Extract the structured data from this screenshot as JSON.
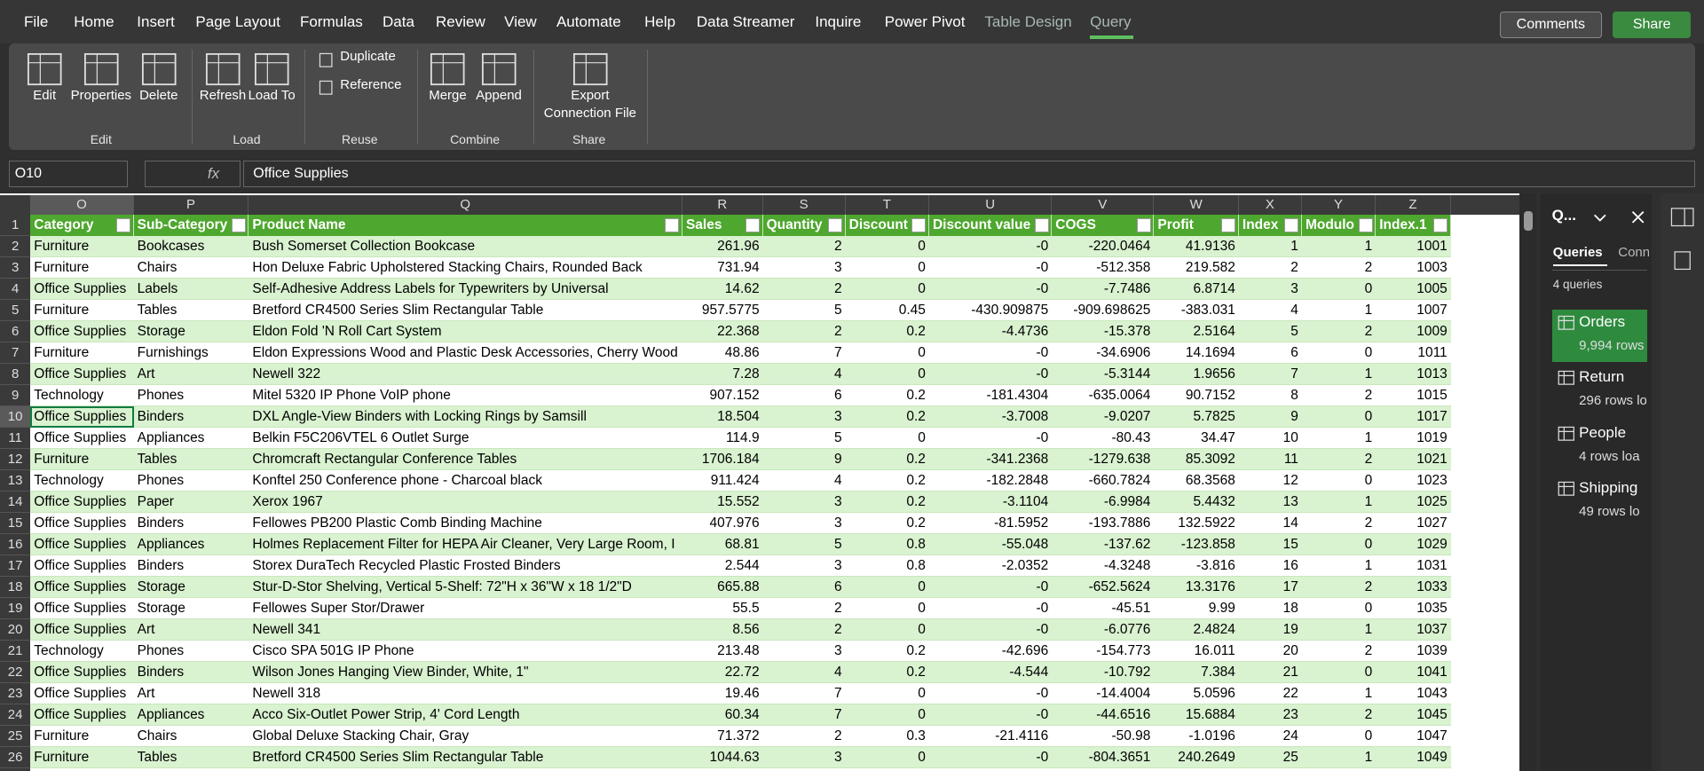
{
  "menu": {
    "tabs": [
      "File",
      "Home",
      "Insert",
      "Page Layout",
      "Formulas",
      "Data",
      "Review",
      "View",
      "Automate",
      "Help",
      "Data Streamer",
      "Inquire",
      "Power Pivot",
      "Table Design",
      "Query"
    ],
    "comments": "Comments",
    "share": "Share"
  },
  "ribbon": {
    "groups": [
      {
        "label": "Edit",
        "buttons": [
          "Edit",
          "Properties",
          "Delete"
        ]
      },
      {
        "label": "Load",
        "buttons": [
          "Refresh",
          "Load To"
        ]
      },
      {
        "label": "Reuse",
        "buttons": [
          "Duplicate",
          "Reference"
        ]
      },
      {
        "label": "Combine",
        "buttons": [
          "Merge",
          "Append"
        ]
      },
      {
        "label": "Share",
        "buttons": [
          "Export Connection File"
        ]
      }
    ]
  },
  "formula_bar": {
    "name_box": "O10",
    "fx": "fx",
    "content": "Office Supplies"
  },
  "sheet": {
    "columns": [
      "O",
      "P",
      "Q",
      "R",
      "S",
      "T",
      "U",
      "V",
      "W",
      "X",
      "Y",
      "Z"
    ],
    "row_numbers": [
      1,
      2,
      3,
      4,
      5,
      6,
      7,
      8,
      9,
      10,
      11,
      12,
      13,
      14,
      15,
      16,
      17,
      18,
      19,
      20,
      21,
      22,
      23,
      24,
      25,
      26
    ],
    "header": [
      "Category",
      "Sub-Category",
      "Product Name",
      "Sales",
      "Quantity",
      "Discount",
      "Discount value",
      "COGS",
      "Profit",
      "Index",
      "Modulo",
      "Index.1"
    ],
    "rows": [
      [
        "Furniture",
        "Bookcases",
        "Bush Somerset Collection Bookcase",
        "261.96",
        "2",
        "0",
        "-0",
        "-220.0464",
        "41.9136",
        "1",
        "1",
        "1001"
      ],
      [
        "Furniture",
        "Chairs",
        "Hon Deluxe Fabric Upholstered Stacking Chairs, Rounded Back",
        "731.94",
        "3",
        "0",
        "-0",
        "-512.358",
        "219.582",
        "2",
        "2",
        "1003"
      ],
      [
        "Office Supplies",
        "Labels",
        "Self-Adhesive Address Labels for Typewriters by Universal",
        "14.62",
        "2",
        "0",
        "-0",
        "-7.7486",
        "6.8714",
        "3",
        "0",
        "1005"
      ],
      [
        "Furniture",
        "Tables",
        "Bretford CR4500 Series Slim Rectangular Table",
        "957.5775",
        "5",
        "0.45",
        "-430.909875",
        "-909.698625",
        "-383.031",
        "4",
        "1",
        "1007"
      ],
      [
        "Office Supplies",
        "Storage",
        "Eldon Fold 'N Roll Cart System",
        "22.368",
        "2",
        "0.2",
        "-4.4736",
        "-15.378",
        "2.5164",
        "5",
        "2",
        "1009"
      ],
      [
        "Furniture",
        "Furnishings",
        "Eldon Expressions Wood and Plastic Desk Accessories, Cherry Wood",
        "48.86",
        "7",
        "0",
        "-0",
        "-34.6906",
        "14.1694",
        "6",
        "0",
        "1011"
      ],
      [
        "Office Supplies",
        "Art",
        "Newell 322",
        "7.28",
        "4",
        "0",
        "-0",
        "-5.3144",
        "1.9656",
        "7",
        "1",
        "1013"
      ],
      [
        "Technology",
        "Phones",
        "Mitel 5320 IP Phone VoIP phone",
        "907.152",
        "6",
        "0.2",
        "-181.4304",
        "-635.0064",
        "90.7152",
        "8",
        "2",
        "1015"
      ],
      [
        "Office Supplies",
        "Binders",
        "DXL Angle-View Binders with Locking Rings by Samsill",
        "18.504",
        "3",
        "0.2",
        "-3.7008",
        "-9.0207",
        "5.7825",
        "9",
        "0",
        "1017"
      ],
      [
        "Office Supplies",
        "Appliances",
        "Belkin F5C206VTEL 6 Outlet Surge",
        "114.9",
        "5",
        "0",
        "-0",
        "-80.43",
        "34.47",
        "10",
        "1",
        "1019"
      ],
      [
        "Furniture",
        "Tables",
        "Chromcraft Rectangular Conference Tables",
        "1706.184",
        "9",
        "0.2",
        "-341.2368",
        "-1279.638",
        "85.3092",
        "11",
        "2",
        "1021"
      ],
      [
        "Technology",
        "Phones",
        "Konftel 250 Conference phone - Charcoal black",
        "911.424",
        "4",
        "0.2",
        "-182.2848",
        "-660.7824",
        "68.3568",
        "12",
        "0",
        "1023"
      ],
      [
        "Office Supplies",
        "Paper",
        "Xerox 1967",
        "15.552",
        "3",
        "0.2",
        "-3.1104",
        "-6.9984",
        "5.4432",
        "13",
        "1",
        "1025"
      ],
      [
        "Office Supplies",
        "Binders",
        "Fellowes PB200 Plastic Comb Binding Machine",
        "407.976",
        "3",
        "0.2",
        "-81.5952",
        "-193.7886",
        "132.5922",
        "14",
        "2",
        "1027"
      ],
      [
        "Office Supplies",
        "Appliances",
        "Holmes Replacement Filter for HEPA Air Cleaner, Very Large Room, I",
        "68.81",
        "5",
        "0.8",
        "-55.048",
        "-137.62",
        "-123.858",
        "15",
        "0",
        "1029"
      ],
      [
        "Office Supplies",
        "Binders",
        "Storex DuraTech Recycled Plastic Frosted Binders",
        "2.544",
        "3",
        "0.8",
        "-2.0352",
        "-4.3248",
        "-3.816",
        "16",
        "1",
        "1031"
      ],
      [
        "Office Supplies",
        "Storage",
        "Stur-D-Stor Shelving, Vertical 5-Shelf: 72\"H x 36\"W x 18 1/2\"D",
        "665.88",
        "6",
        "0",
        "-0",
        "-652.5624",
        "13.3176",
        "17",
        "2",
        "1033"
      ],
      [
        "Office Supplies",
        "Storage",
        "Fellowes Super Stor/Drawer",
        "55.5",
        "2",
        "0",
        "-0",
        "-45.51",
        "9.99",
        "18",
        "0",
        "1035"
      ],
      [
        "Office Supplies",
        "Art",
        "Newell 341",
        "8.56",
        "2",
        "0",
        "-0",
        "-6.0776",
        "2.4824",
        "19",
        "1",
        "1037"
      ],
      [
        "Technology",
        "Phones",
        "Cisco SPA 501G IP Phone",
        "213.48",
        "3",
        "0.2",
        "-42.696",
        "-154.773",
        "16.011",
        "20",
        "2",
        "1039"
      ],
      [
        "Office Supplies",
        "Binders",
        "Wilson Jones Hanging View Binder, White, 1\"",
        "22.72",
        "4",
        "0.2",
        "-4.544",
        "-10.792",
        "7.384",
        "21",
        "0",
        "1041"
      ],
      [
        "Office Supplies",
        "Art",
        "Newell 318",
        "19.46",
        "7",
        "0",
        "-0",
        "-14.4004",
        "5.0596",
        "22",
        "1",
        "1043"
      ],
      [
        "Office Supplies",
        "Appliances",
        "Acco Six-Outlet Power Strip, 4' Cord Length",
        "60.34",
        "7",
        "0",
        "-0",
        "-44.6516",
        "15.6884",
        "23",
        "2",
        "1045"
      ],
      [
        "Furniture",
        "Chairs",
        "Global Deluxe Stacking Chair, Gray",
        "71.372",
        "2",
        "0.3",
        "-21.4116",
        "-50.98",
        "-1.0196",
        "24",
        "0",
        "1047"
      ],
      [
        "Furniture",
        "Tables",
        "Bretford CR4500 Series Slim Rectangular Table",
        "1044.63",
        "3",
        "0",
        "-0",
        "-804.3651",
        "240.2649",
        "25",
        "1",
        "1049"
      ]
    ]
  },
  "queries_pane": {
    "title": "Q...",
    "tabs": [
      "Queries",
      "Conn"
    ],
    "count": "4 queries",
    "queries": [
      {
        "name": "Orders",
        "status": "9,994 rows"
      },
      {
        "name": "Return",
        "status": "296 rows lo"
      },
      {
        "name": "People",
        "status": "4 rows loa"
      },
      {
        "name": "Shipping",
        "status": "49 rows lo"
      }
    ]
  }
}
